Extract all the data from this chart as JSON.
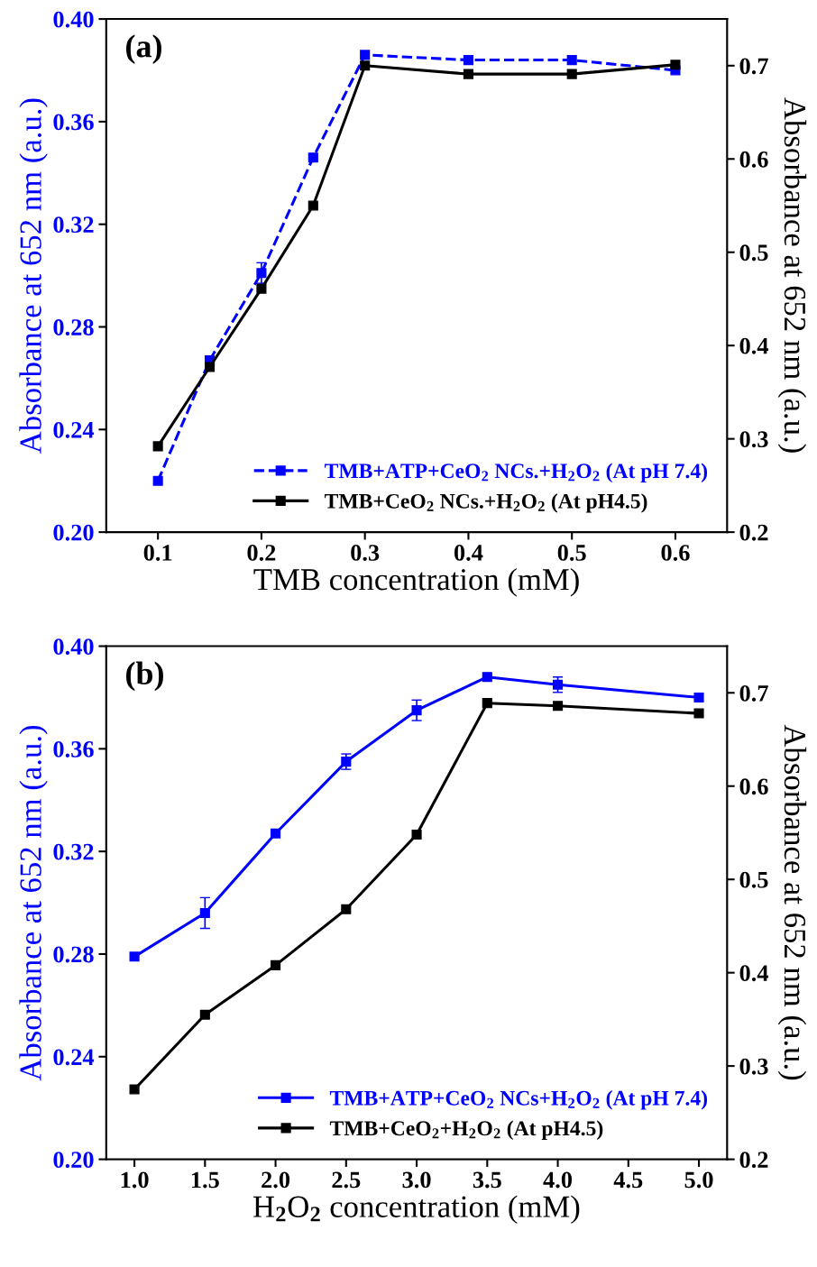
{
  "chart_data": [
    {
      "type": "line",
      "annotations": [
        "(a)"
      ],
      "xlabel": "TMB concentration (mM)",
      "ylabel": "Absorbance at 652 nm (a.u.)",
      "y2label": "Absorbance at 652 nm (a.u.)",
      "x": [
        0.1,
        0.15,
        0.2,
        0.25,
        0.3,
        0.4,
        0.5,
        0.6
      ],
      "xlim": [
        0.05,
        0.65
      ],
      "xticks": [
        0.1,
        0.2,
        0.3,
        0.4,
        0.5,
        0.6
      ],
      "ylim": [
        0.2,
        0.4
      ],
      "yticks": [
        {
          "value": 0.2,
          "label": "0.20"
        },
        {
          "value": 0.24,
          "label": "0.24"
        },
        {
          "value": 0.28,
          "label": "0.28"
        },
        {
          "value": 0.32,
          "label": "0.32"
        },
        {
          "value": 0.36,
          "label": "0.36"
        },
        {
          "value": 0.4,
          "label": "0.40"
        }
      ],
      "y2lim": [
        0.2,
        0.75
      ],
      "y2ticks": [
        0.2,
        0.3,
        0.4,
        0.5,
        0.6,
        0.7
      ],
      "legend": "bottom right",
      "grid": false,
      "marker": "square",
      "series": [
        {
          "name": "TMB+ATP+CeO$_{2}$ NCs.+H$_{2}$O$_{2}$ (At pH 7.4)",
          "color": "#0000ff",
          "line_style": "dashed",
          "values": [
            0.22,
            0.267,
            0.301,
            0.346,
            0.386,
            0.384,
            0.384,
            0.38
          ],
          "errors": [
            null,
            null,
            0.004,
            null,
            null,
            null,
            null,
            null
          ]
        },
        {
          "name": "TMB+CeO$_{2}$ NCs.+H$_{2}$O$_{2}$ (At pH4.5)",
          "color": "#000000",
          "line_style": "solid",
          "axis": "y2",
          "values": [
            0.292,
            0.377,
            0.461,
            0.55,
            0.7,
            0.691,
            0.691,
            0.701
          ]
        }
      ]
    },
    {
      "type": "line",
      "annotations": [
        "(b)"
      ],
      "xlabel": "H$_{2}$O$_{2}$ concentration (mM)",
      "ylabel": "Absorbance at 652 nm (a.u.)",
      "y2label": "Absorbance at 652 nm (a.u.)",
      "x": [
        1.0,
        1.5,
        2.0,
        2.5,
        3.0,
        3.5,
        4.0,
        5.0
      ],
      "xlim": [
        0.8,
        5.2
      ],
      "xticks": [
        {
          "value": 1,
          "label": "1.0"
        },
        1.5,
        {
          "value": 2,
          "label": "2.0"
        },
        2.5,
        {
          "value": 3,
          "label": "3.0"
        },
        3.5,
        {
          "value": 4,
          "label": "4.0"
        },
        4.5,
        {
          "value": 5,
          "label": "5.0"
        }
      ],
      "ylim": [
        0.2,
        0.4
      ],
      "yticks": [
        {
          "value": 0.2,
          "label": "0.20"
        },
        {
          "value": 0.24,
          "label": "0.24"
        },
        {
          "value": 0.28,
          "label": "0.28"
        },
        {
          "value": 0.32,
          "label": "0.32"
        },
        {
          "value": 0.36,
          "label": "0.36"
        },
        {
          "value": 0.4,
          "label": "0.40"
        }
      ],
      "y2lim": [
        0.2,
        0.75
      ],
      "y2ticks": [
        0.2,
        0.3,
        0.4,
        0.5,
        0.6,
        0.7
      ],
      "legend": "bottom right",
      "grid": false,
      "marker": "square",
      "series": [
        {
          "name": "TMB+ATP+CeO$_{2}$ NCs+H$_{2}$O$_{2}$ (At pH 7.4)",
          "color": "#0000ff",
          "line_style": "solid",
          "values": [
            0.279,
            0.296,
            0.327,
            0.355,
            0.375,
            0.388,
            0.385,
            0.38
          ],
          "errors": [
            null,
            0.006,
            null,
            0.003,
            0.004,
            null,
            0.003,
            null
          ]
        },
        {
          "name": "TMB+CeO$_{2}$+H$_{2}$O$_{2}$ (At pH4.5)",
          "color": "#000000",
          "line_style": "solid",
          "axis": "y2",
          "values": [
            0.275,
            0.355,
            0.408,
            0.468,
            0.548,
            0.689,
            0.686,
            0.678
          ]
        }
      ]
    }
  ]
}
